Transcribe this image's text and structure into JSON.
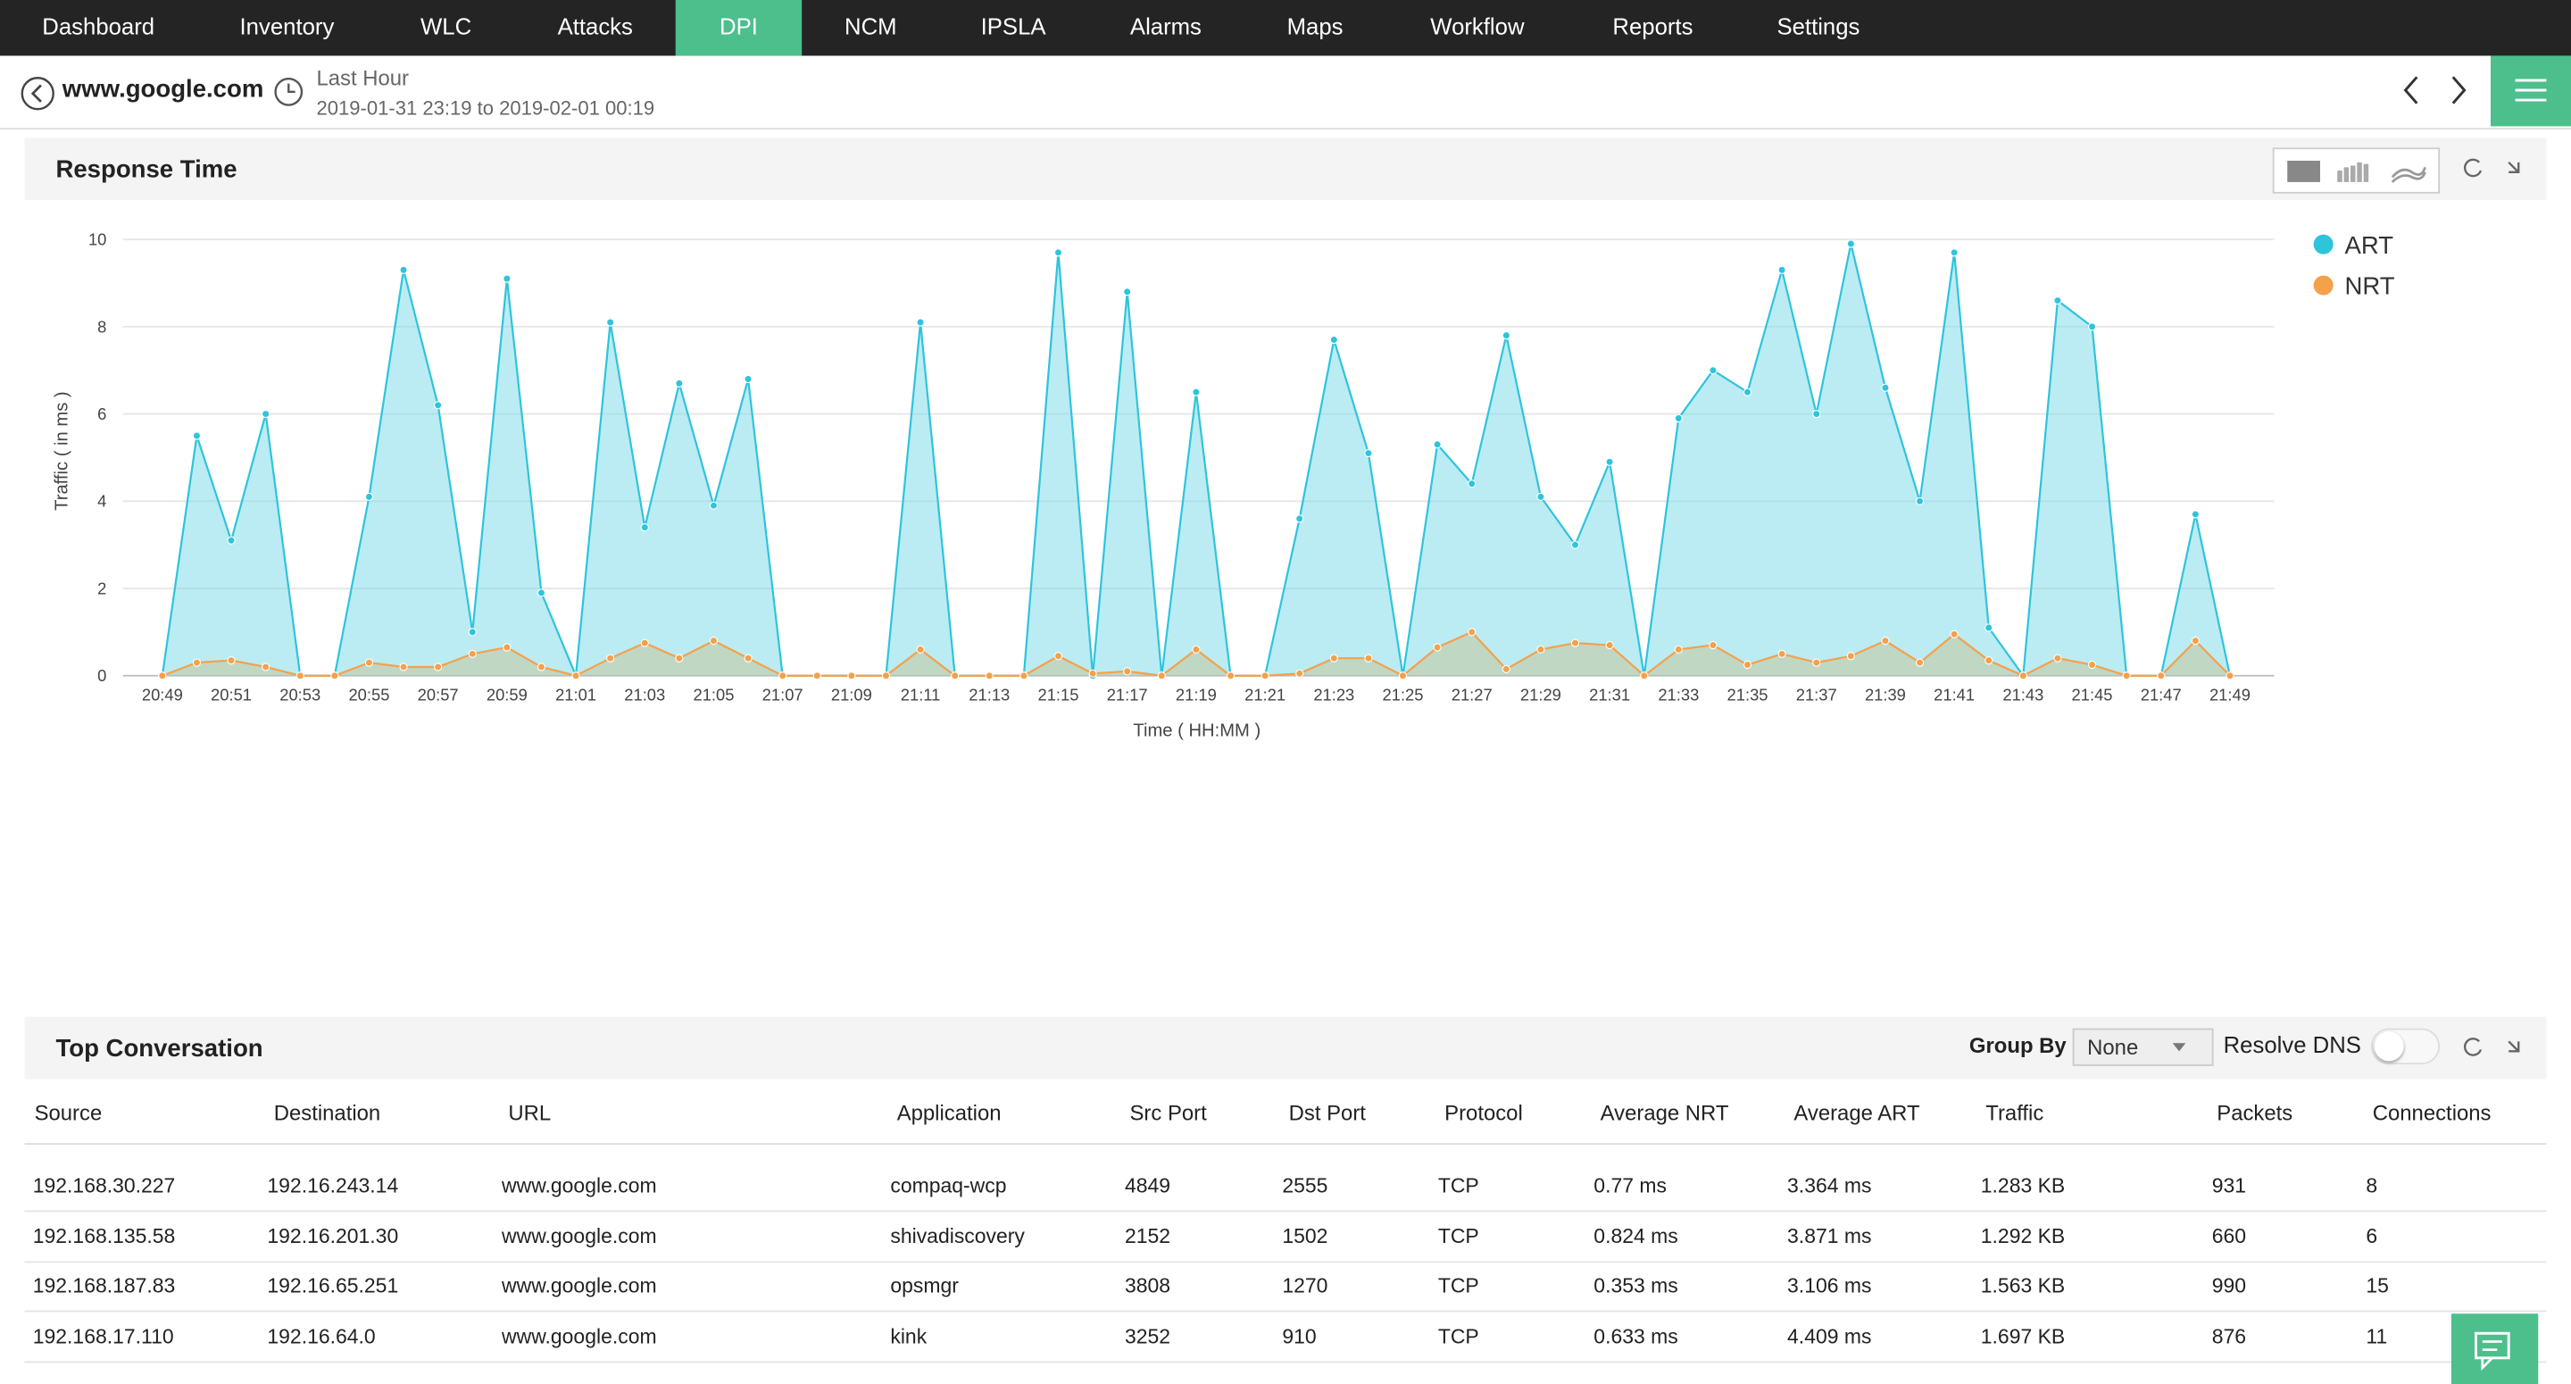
{
  "nav": [
    "Dashboard",
    "Inventory",
    "WLC",
    "Attacks",
    "DPI",
    "NCM",
    "IPSLA",
    "Alarms",
    "Maps",
    "Workflow",
    "Reports",
    "Settings"
  ],
  "active_nav": 4,
  "header": {
    "title": "www.google.com",
    "period": "Last Hour",
    "range": "2019-01-31 23:19 to 2019-02-01 00:19"
  },
  "chart_panel_title": "Response Time",
  "chart_data": {
    "type": "area",
    "x": [
      "20:49",
      null,
      "20:51",
      null,
      "20:53",
      null,
      "20:55",
      null,
      "20:57",
      null,
      "20:59",
      null,
      "21:01",
      null,
      "21:03",
      null,
      "21:05",
      null,
      "21:07",
      null,
      "21:09",
      null,
      "21:11",
      null,
      "21:13",
      null,
      "21:15",
      null,
      "21:17",
      null,
      "21:19",
      null,
      "21:21",
      null,
      "21:23",
      null,
      "21:25",
      null,
      "21:27",
      null,
      "21:29",
      null,
      "21:31",
      null,
      "21:33",
      null,
      "21:35",
      null,
      "21:37",
      null,
      "21:39",
      null,
      "21:41",
      null,
      "21:43",
      null,
      "21:45",
      null,
      "21:47",
      null,
      "21:49"
    ],
    "ylabel": "Traffic ( in ms )",
    "xlabel": "Time ( HH:MM )",
    "ylim": [
      0,
      10
    ],
    "yticks": [
      0,
      2,
      4,
      6,
      8,
      10
    ],
    "grid": true,
    "series": [
      {
        "name": "ART",
        "color": "#2ec4dc",
        "values": [
          0,
          5.5,
          3.1,
          6.0,
          0,
          0,
          4.1,
          9.3,
          6.2,
          1.0,
          9.1,
          1.9,
          0,
          8.1,
          3.4,
          6.7,
          3.9,
          6.8,
          0,
          0,
          0,
          0,
          8.1,
          0,
          0,
          0,
          9.7,
          0,
          8.8,
          0,
          6.5,
          0,
          0,
          3.6,
          7.7,
          5.1,
          0,
          5.3,
          4.4,
          7.8,
          4.1,
          3.0,
          4.9,
          0,
          5.9,
          7.0,
          6.5,
          9.3,
          6.0,
          9.9,
          6.6,
          4.0,
          9.7,
          1.1,
          0,
          8.6,
          8.0,
          0,
          0,
          3.7,
          0
        ]
      },
      {
        "name": "NRT",
        "color": "#f5a04a",
        "values": [
          0,
          0.3,
          0.35,
          0.2,
          0,
          0,
          0.3,
          0.2,
          0.2,
          0.5,
          0.65,
          0.2,
          0,
          0.4,
          0.75,
          0.4,
          0.8,
          0.4,
          0,
          0,
          0,
          0,
          0.6,
          0,
          0,
          0,
          0.45,
          0.05,
          0.1,
          0,
          0.6,
          0,
          0,
          0.05,
          0.4,
          0.4,
          0,
          0.65,
          1.0,
          0.15,
          0.6,
          0.75,
          0.7,
          0,
          0.6,
          0.7,
          0.25,
          0.5,
          0.3,
          0.45,
          0.8,
          0.3,
          0.95,
          0.35,
          0,
          0.4,
          0.25,
          0,
          0,
          0.8,
          0
        ]
      }
    ]
  },
  "table_panel": {
    "title": "Top Conversation",
    "group_by_label": "Group By",
    "group_by_value": "None",
    "resolve_dns": "Resolve DNS"
  },
  "table": {
    "columns": [
      "Source",
      "Destination",
      "URL",
      "Application",
      "Src Port",
      "Dst Port",
      "Protocol",
      "Average NRT",
      "Average ART",
      "Traffic",
      "Packets",
      "Connections"
    ],
    "rows": [
      [
        "192.168.30.227",
        "192.16.243.14",
        "www.google.com",
        "compaq-wcp",
        "4849",
        "2555",
        "TCP",
        "0.77 ms",
        "3.364 ms",
        "1.283 KB",
        "931",
        "8"
      ],
      [
        "192.168.135.58",
        "192.16.201.30",
        "www.google.com",
        "shivadiscovery",
        "2152",
        "1502",
        "TCP",
        "0.824 ms",
        "3.871 ms",
        "1.292 KB",
        "660",
        "6"
      ],
      [
        "192.168.187.83",
        "192.16.65.251",
        "www.google.com",
        "opsmgr",
        "3808",
        "1270",
        "TCP",
        "0.353 ms",
        "3.106 ms",
        "1.563 KB",
        "990",
        "15"
      ],
      [
        "192.168.17.110",
        "192.16.64.0",
        "www.google.com",
        "kink",
        "3252",
        "910",
        "TCP",
        "0.633 ms",
        "4.409 ms",
        "1.697 KB",
        "876",
        "11"
      ]
    ]
  }
}
